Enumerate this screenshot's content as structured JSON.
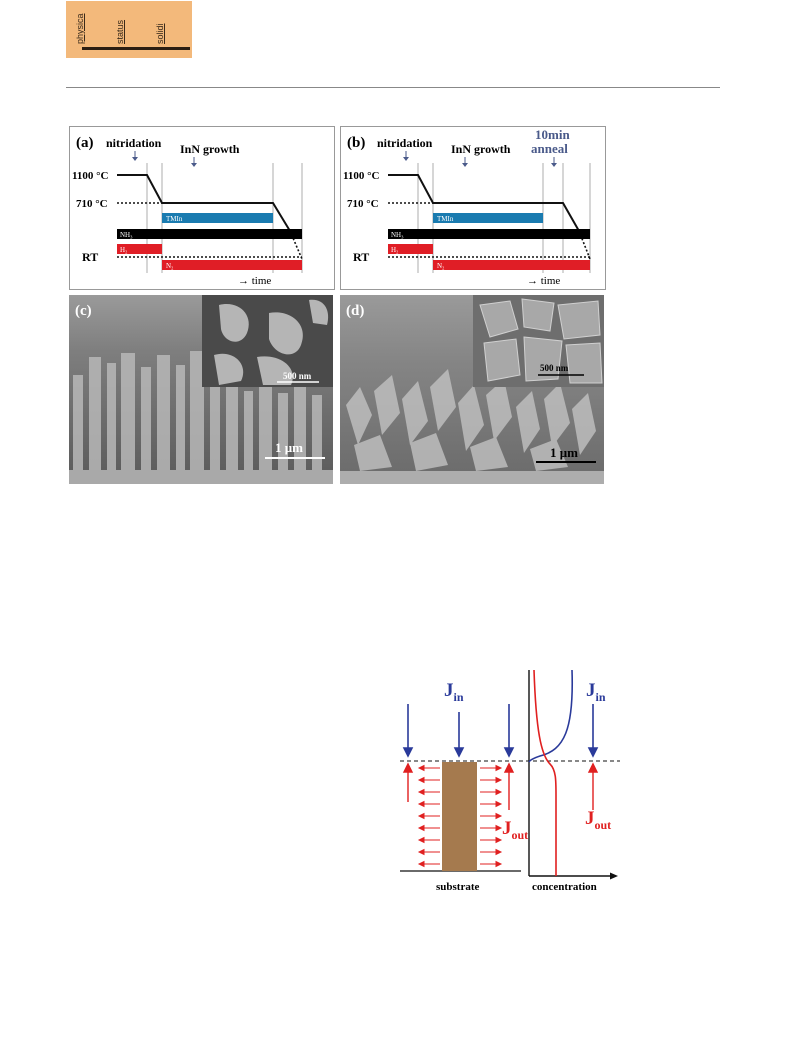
{
  "logo": {
    "words": [
      "physica",
      "status",
      "solidi"
    ]
  },
  "colors": {
    "tmin": "#1a7bb0",
    "nh3": "#000000",
    "h2": "#e01e26",
    "n2": "#e01e26",
    "jin": "#2a3a9a",
    "jout": "#e02020",
    "pillar": "#a57a4e",
    "anneal": "#4a5a8a"
  },
  "panel_a": {
    "label": "(a)",
    "nitridation": "nitridation",
    "growth": "InN growth",
    "t_high": "1100 °C",
    "t_mid": "710 °C",
    "t_rt": "RT",
    "tmin": "TMIn",
    "nh3": "NH₃",
    "h2": "H₂",
    "n2": "N₂",
    "time": "→ time"
  },
  "panel_b": {
    "label": "(b)",
    "nitridation": "nitridation",
    "growth": "InN growth",
    "anneal_line1": "10min",
    "anneal_line2": "anneal",
    "t_high": "1100 °C",
    "t_mid": "710 °C",
    "t_rt": "RT",
    "tmin": "TMIn",
    "nh3": "NH₃",
    "h2": "H₂",
    "n2": "N₂",
    "time": "→ time"
  },
  "panel_c": {
    "label": "(c)",
    "inset_scale": "500 nm",
    "scale": "1 μm"
  },
  "panel_d": {
    "label": "(d)",
    "inset_scale": "500 nm",
    "scale": "1 μm"
  },
  "flux": {
    "jin_main": "J",
    "jin_sub": "in",
    "jout_main": "J",
    "jout_sub": "out",
    "substrate": "substrate",
    "concentration": "concentration"
  }
}
